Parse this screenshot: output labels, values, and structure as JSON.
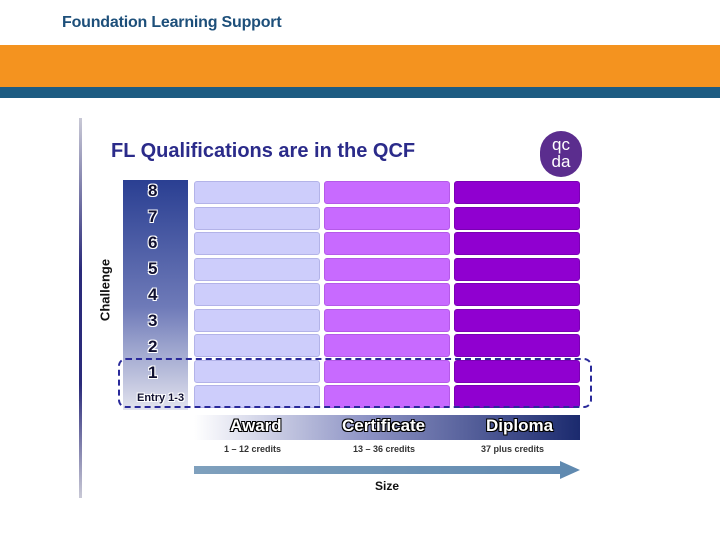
{
  "header": {
    "brand": "Foundation Learning Support"
  },
  "slide": {
    "title": "FL Qualifications are in the QCF",
    "logo": {
      "line1": "qc",
      "line2": "da"
    },
    "axis_y": "Challenge",
    "axis_x": "Size",
    "levels": [
      "8",
      "7",
      "6",
      "5",
      "4",
      "3",
      "2",
      "1",
      "Entry 1-3"
    ],
    "sizes": [
      {
        "name": "Award",
        "credits": "1 – 12 credits"
      },
      {
        "name": "Certificate",
        "credits": "13 – 36 credits"
      },
      {
        "name": "Diploma",
        "credits": "37 plus credits"
      }
    ]
  },
  "colors": {
    "header_orange": "#f4931f",
    "header_blue": "#1d5c82",
    "award": "#cdcdfb",
    "certificate": "#c86aff",
    "diploma": "#9000d0",
    "title": "#2b2b8a"
  }
}
